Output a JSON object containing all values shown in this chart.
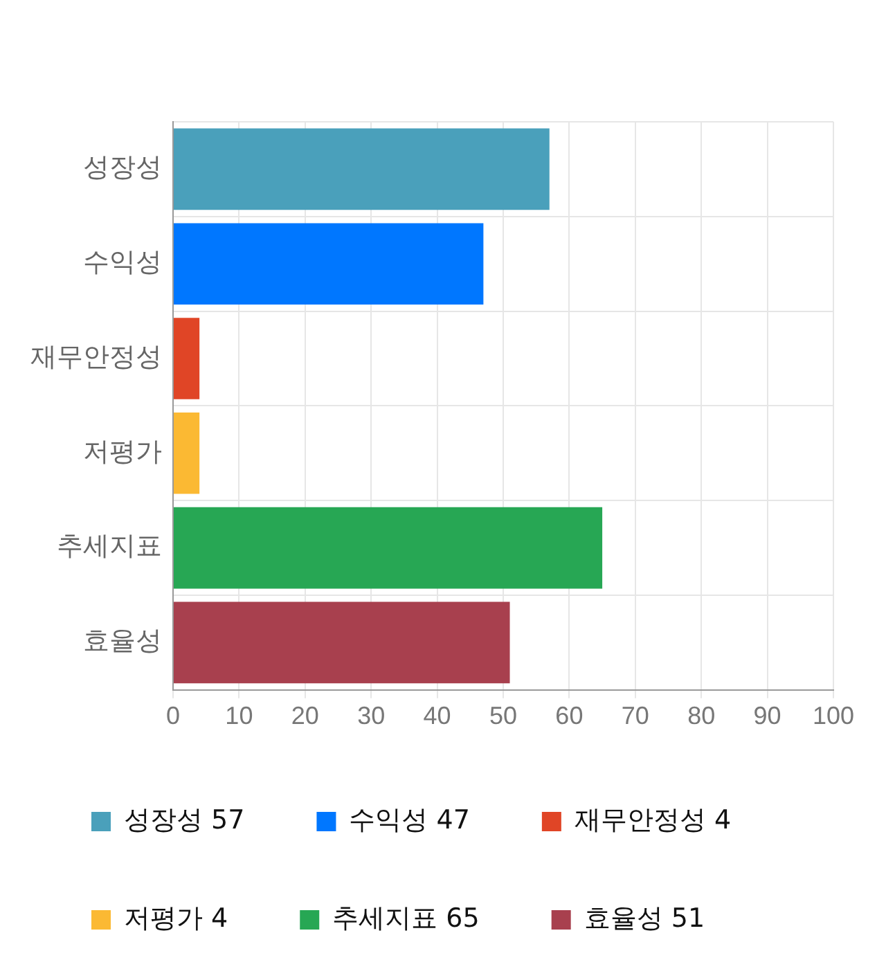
{
  "chart_data": {
    "type": "bar",
    "orientation": "horizontal",
    "categories": [
      "성장성",
      "수익성",
      "재무안정성",
      "저평가",
      "추세지표",
      "효율성"
    ],
    "series": [
      {
        "name": "성장성 57",
        "color": "#4aa0bb",
        "values": [
          57,
          null,
          null,
          null,
          null,
          null
        ]
      },
      {
        "name": "수익성 47",
        "color": "#0077ff",
        "values": [
          null,
          47,
          null,
          null,
          null,
          null
        ]
      },
      {
        "name": "재무안정성 4",
        "color": "#e04526",
        "values": [
          null,
          null,
          4,
          null,
          null,
          null
        ]
      },
      {
        "name": "저평가 4",
        "color": "#fbb933",
        "values": [
          null,
          null,
          null,
          4,
          null,
          null
        ]
      },
      {
        "name": "추세지표 65",
        "color": "#27a754",
        "values": [
          null,
          null,
          null,
          null,
          65,
          null
        ]
      },
      {
        "name": "효율성 51",
        "color": "#a8404e",
        "values": [
          null,
          null,
          null,
          null,
          null,
          51
        ]
      }
    ],
    "xlim": [
      0,
      100
    ],
    "xticks": [
      0,
      10,
      20,
      30,
      40,
      50,
      60,
      70,
      80,
      90,
      100
    ],
    "grid": true,
    "legend": "bottom"
  }
}
